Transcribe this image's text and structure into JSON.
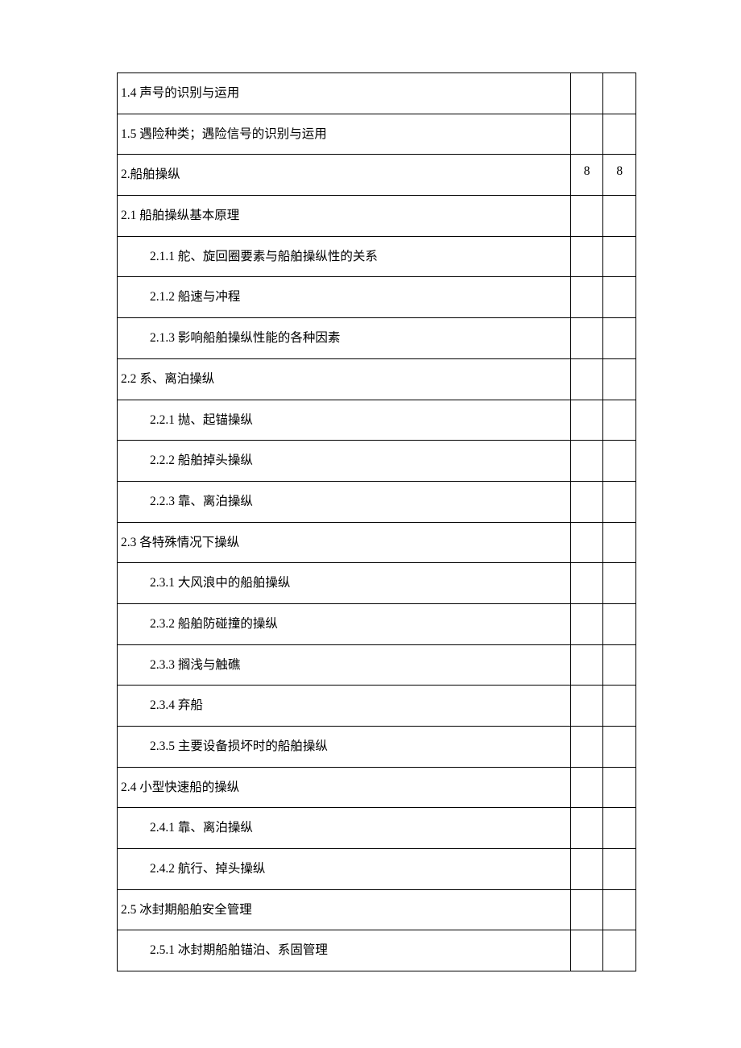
{
  "table": {
    "column_widths": {
      "main": 555,
      "col1": 40,
      "col2": 40
    },
    "font_size": 15.5,
    "font_family": "SimSun",
    "border_color": "#000000",
    "text_color": "#000000",
    "background_color": "#ffffff",
    "indent_level_1": 4,
    "indent_level_2": 40,
    "rows": [
      {
        "text": "1.4 声号的识别与运用",
        "indent": 1,
        "col1": "",
        "col2": ""
      },
      {
        "text": "1.5 遇险种类；遇险信号的识别与运用",
        "indent": 1,
        "col1": "",
        "col2": ""
      },
      {
        "text": "2.船舶操纵",
        "indent": 1,
        "col1": "8",
        "col2": "8"
      },
      {
        "text": "2.1 船舶操纵基本原理",
        "indent": 1,
        "col1": "",
        "col2": ""
      },
      {
        "text": "2.1.1 舵、旋回圈要素与船舶操纵性的关系",
        "indent": 2,
        "col1": "",
        "col2": ""
      },
      {
        "text": "2.1.2 船速与冲程",
        "indent": 2,
        "col1": "",
        "col2": ""
      },
      {
        "text": "2.1.3 影响船舶操纵性能的各种因素",
        "indent": 2,
        "col1": "",
        "col2": ""
      },
      {
        "text": "2.2 系、离泊操纵",
        "indent": 1,
        "col1": "",
        "col2": ""
      },
      {
        "text": "2.2.1 抛、起锚操纵",
        "indent": 2,
        "col1": "",
        "col2": ""
      },
      {
        "text": "2.2.2 船舶掉头操纵",
        "indent": 2,
        "col1": "",
        "col2": ""
      },
      {
        "text": "2.2.3 靠、离泊操纵",
        "indent": 2,
        "col1": "",
        "col2": ""
      },
      {
        "text": "2.3 各特殊情况下操纵",
        "indent": 1,
        "col1": "",
        "col2": ""
      },
      {
        "text": "2.3.1 大风浪中的船舶操纵",
        "indent": 2,
        "col1": "",
        "col2": ""
      },
      {
        "text": "2.3.2 船舶防碰撞的操纵",
        "indent": 2,
        "col1": "",
        "col2": ""
      },
      {
        "text": "2.3.3 搁浅与触礁",
        "indent": 2,
        "col1": "",
        "col2": ""
      },
      {
        "text": "2.3.4 弃船",
        "indent": 2,
        "col1": "",
        "col2": ""
      },
      {
        "text": "2.3.5 主要设备损坏时的船舶操纵",
        "indent": 2,
        "col1": "",
        "col2": ""
      },
      {
        "text": "2.4 小型快速船的操纵",
        "indent": 1,
        "col1": "",
        "col2": ""
      },
      {
        "text": "2.4.1 靠、离泊操纵",
        "indent": 2,
        "col1": "",
        "col2": ""
      },
      {
        "text": "2.4.2 航行、掉头操纵",
        "indent": 2,
        "col1": "",
        "col2": ""
      },
      {
        "text": "2.5 冰封期船舶安全管理",
        "indent": 1,
        "col1": "",
        "col2": ""
      },
      {
        "text": "2.5.1 冰封期船舶锚泊、系固管理",
        "indent": 2,
        "col1": "",
        "col2": ""
      }
    ]
  }
}
